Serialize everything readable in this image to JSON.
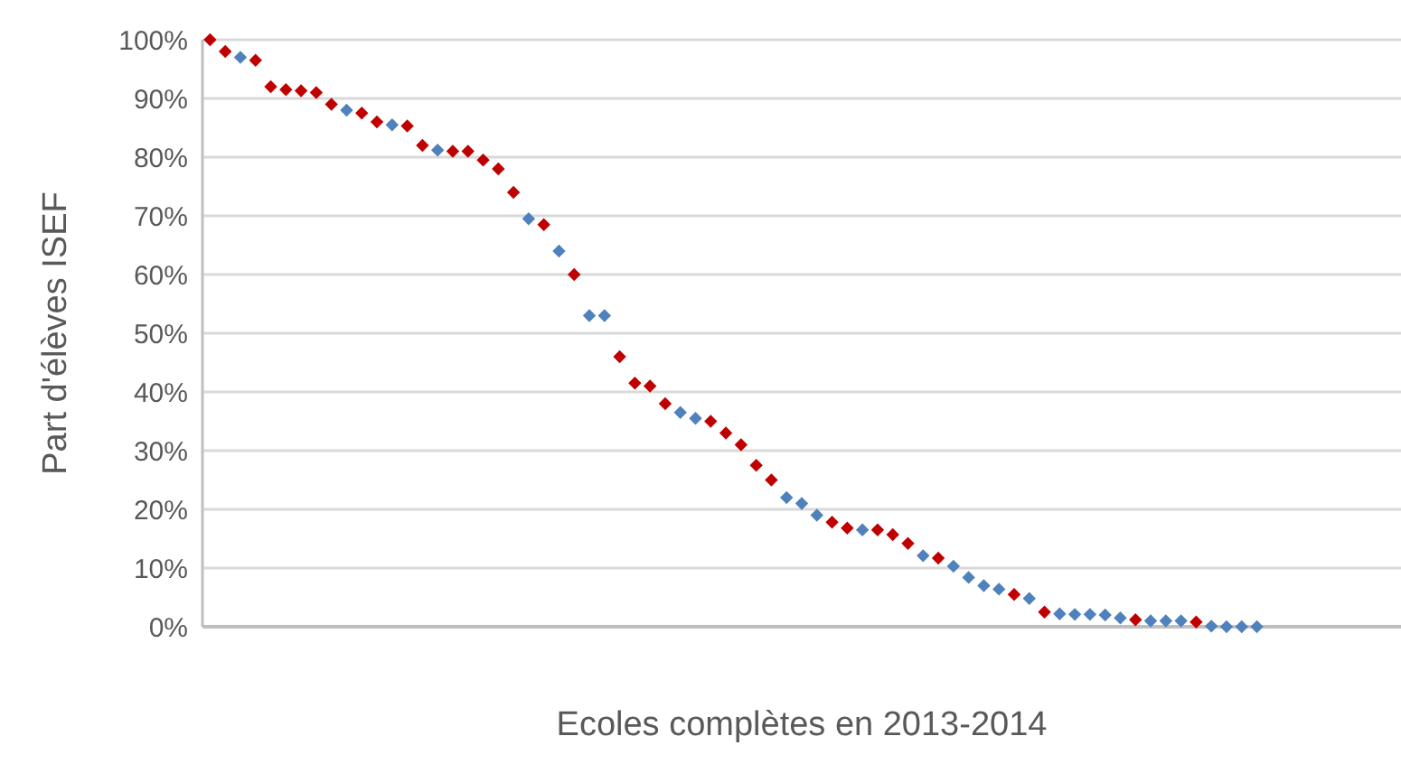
{
  "chart_data": {
    "type": "scatter",
    "xlabel": "Ecoles complètes en 2013-2014",
    "ylabel": "Part d'élèves ISEF",
    "categories": [
      null,
      null,
      null,
      null,
      null,
      null,
      null,
      null,
      null,
      null,
      null,
      null,
      null,
      null,
      null,
      null,
      null,
      null,
      null,
      null,
      null,
      null,
      null,
      null,
      null,
      null,
      null,
      null,
      null,
      null,
      null,
      null,
      null,
      null,
      null,
      null,
      null,
      null,
      null,
      null,
      null,
      null,
      null,
      null,
      null,
      null,
      null,
      null,
      null,
      null,
      null,
      null,
      null,
      null,
      null,
      null,
      null,
      null,
      null,
      null,
      null,
      null,
      null,
      null,
      null,
      null,
      null,
      null,
      null,
      null,
      null,
      null,
      null,
      null,
      null,
      null,
      null,
      null,
      null
    ],
    "values": [
      100,
      98,
      97,
      96.5,
      92,
      91.5,
      91.3,
      91,
      89,
      88,
      87.5,
      86,
      85.5,
      85.3,
      82,
      81.2,
      81,
      81,
      79.5,
      78,
      74,
      69.5,
      68.5,
      64,
      60,
      53,
      53,
      46,
      41.5,
      41,
      38,
      36.5,
      35.5,
      35,
      33,
      31,
      27.5,
      25,
      22,
      21,
      19,
      17.8,
      16.8,
      16.5,
      16.5,
      15.7,
      14.2,
      12.1,
      11.7,
      10.3,
      8.4,
      7,
      6.4,
      5.5,
      4.8,
      2.5,
      2.2,
      2.1,
      2.1,
      2,
      1.5,
      1.2,
      1,
      1,
      1,
      0.8,
      0.1,
      0,
      0,
      0,
      null,
      null,
      null,
      null,
      null,
      null,
      null,
      null,
      null
    ],
    "colors": [
      "#c00000",
      "#c00000",
      "#4f81bd",
      "#c00000",
      "#c00000",
      "#c00000",
      "#c00000",
      "#c00000",
      "#c00000",
      "#4f81bd",
      "#c00000",
      "#c00000",
      "#4f81bd",
      "#c00000",
      "#c00000",
      "#4f81bd",
      "#c00000",
      "#c00000",
      "#c00000",
      "#c00000",
      "#c00000",
      "#4f81bd",
      "#c00000",
      "#4f81bd",
      "#c00000",
      "#4f81bd",
      "#4f81bd",
      "#c00000",
      "#c00000",
      "#c00000",
      "#c00000",
      "#4f81bd",
      "#4f81bd",
      "#c00000",
      "#c00000",
      "#c00000",
      "#c00000",
      "#c00000",
      "#4f81bd",
      "#4f81bd",
      "#4f81bd",
      "#c00000",
      "#c00000",
      "#4f81bd",
      "#c00000",
      "#c00000",
      "#c00000",
      "#4f81bd",
      "#c00000",
      "#4f81bd",
      "#4f81bd",
      "#4f81bd",
      "#4f81bd",
      "#c00000",
      "#4f81bd",
      "#c00000",
      "#4f81bd",
      "#4f81bd",
      "#4f81bd",
      "#4f81bd",
      "#4f81bd",
      "#c00000",
      "#4f81bd",
      "#4f81bd",
      "#4f81bd",
      "#c00000",
      "#4f81bd",
      "#4f81bd",
      "#4f81bd",
      "#4f81bd",
      null,
      null,
      null,
      null,
      null,
      null,
      null,
      null,
      null
    ],
    "ylim": [
      0,
      100
    ],
    "yticks": [
      {
        "value": 0,
        "label": "0%"
      },
      {
        "value": 10,
        "label": "10%"
      },
      {
        "value": 20,
        "label": "20%"
      },
      {
        "value": 30,
        "label": "30%"
      },
      {
        "value": 40,
        "label": "40%"
      },
      {
        "value": 50,
        "label": "50%"
      },
      {
        "value": 60,
        "label": "60%"
      },
      {
        "value": 70,
        "label": "70%"
      },
      {
        "value": 80,
        "label": "80%"
      },
      {
        "value": 90,
        "label": "90%"
      },
      {
        "value": 100,
        "label": "100%"
      }
    ],
    "grid": "y",
    "legend": false,
    "marker": "diamond"
  }
}
